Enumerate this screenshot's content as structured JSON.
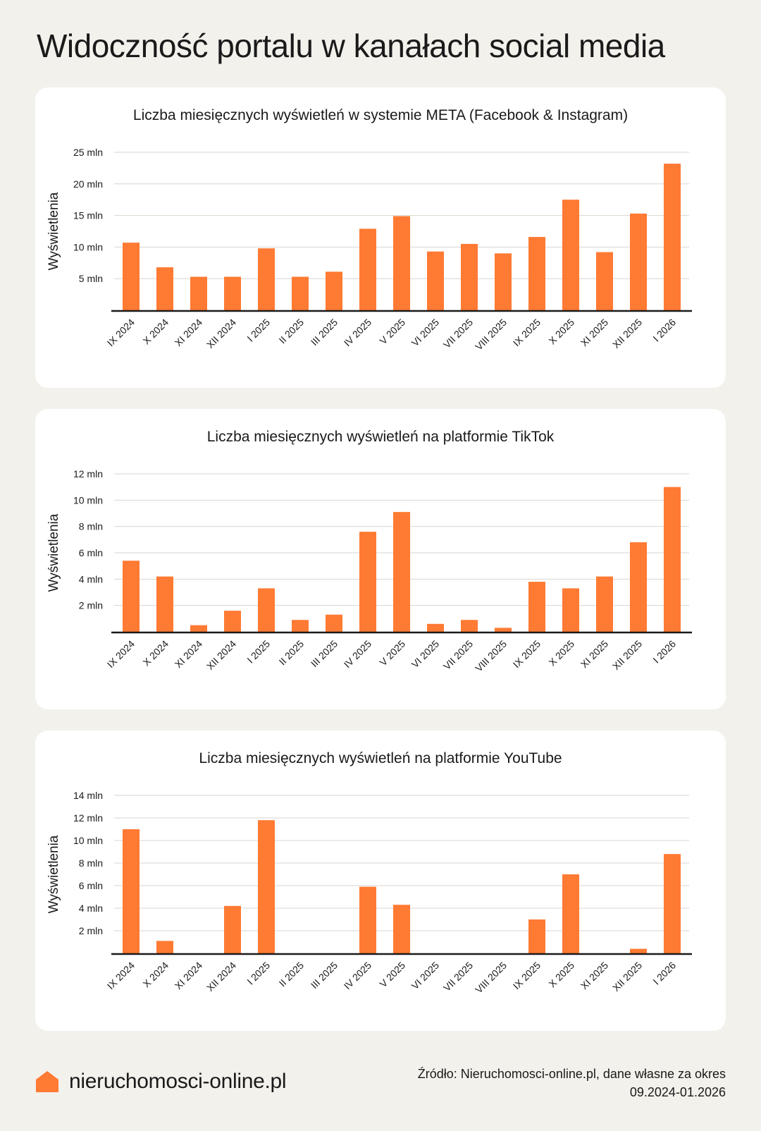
{
  "page": {
    "title": "Widoczność portalu w kanałach social media"
  },
  "colors": {
    "bar": "#ff7a33",
    "grid": "#d9d6cf",
    "axis": "#1a1a1a",
    "card": "#ffffff",
    "background": "#f3f1ec"
  },
  "chart_data": [
    {
      "type": "bar",
      "title": "Liczba miesięcznych wyświetleń w systemie META (Facebook & Instagram)",
      "ylabel": "Wyświetlenia",
      "xlabel": "",
      "ylim": [
        0,
        25
      ],
      "yticks": [
        5,
        10,
        15,
        20,
        25
      ],
      "ytick_labels": [
        "5 mln",
        "10 mln",
        "15 mln",
        "20 mln",
        "25 mln"
      ],
      "categories": [
        "IX 2024",
        "X 2024",
        "XI 2024",
        "XII 2024",
        "I 2025",
        "II 2025",
        "III 2025",
        "IV 2025",
        "V 2025",
        "VI 2025",
        "VII 2025",
        "VIII 2025",
        "IX 2025",
        "X 2025",
        "XI 2025",
        "XII 2025",
        "I 2026"
      ],
      "values": [
        10.7,
        6.8,
        5.3,
        5.3,
        9.8,
        5.3,
        6.1,
        12.9,
        14.9,
        9.3,
        10.5,
        9.0,
        11.6,
        17.5,
        9.2,
        15.3,
        23.2
      ]
    },
    {
      "type": "bar",
      "title": "Liczba miesięcznych wyświetleń na platformie TikTok",
      "ylabel": "Wyświetlenia",
      "xlabel": "",
      "ylim": [
        0,
        12
      ],
      "yticks": [
        2,
        4,
        6,
        8,
        10,
        12
      ],
      "ytick_labels": [
        "2 mln",
        "4 mln",
        "6 mln",
        "8 mln",
        "10 mln",
        "12 mln"
      ],
      "categories": [
        "IX 2024",
        "X 2024",
        "XI 2024",
        "XII 2024",
        "I 2025",
        "II 2025",
        "III 2025",
        "IV 2025",
        "V 2025",
        "VI 2025",
        "VII 2025",
        "VIII 2025",
        "IX 2025",
        "X 2025",
        "XI 2025",
        "XII 2025",
        "I 2026"
      ],
      "values": [
        5.4,
        4.2,
        0.5,
        1.6,
        3.3,
        0.9,
        1.3,
        7.6,
        9.1,
        0.6,
        0.9,
        0.3,
        3.8,
        3.3,
        4.2,
        6.8,
        11.0
      ]
    },
    {
      "type": "bar",
      "title": "Liczba miesięcznych wyświetleń na platformie YouTube",
      "ylabel": "Wyświetlenia",
      "xlabel": "",
      "ylim": [
        0,
        14
      ],
      "yticks": [
        2,
        4,
        6,
        8,
        10,
        12,
        14
      ],
      "ytick_labels": [
        "2 mln",
        "4 mln",
        "6 mln",
        "8 mln",
        "10 mln",
        "12 mln",
        "14 mln"
      ],
      "categories": [
        "IX 2024",
        "X 2024",
        "XI 2024",
        "XII 2024",
        "I 2025",
        "II 2025",
        "III 2025",
        "IV 2025",
        "V 2025",
        "VI 2025",
        "VII 2025",
        "VIII 2025",
        "IX 2025",
        "X 2025",
        "XI 2025",
        "XII 2025",
        "I 2026"
      ],
      "values": [
        11.0,
        1.1,
        0,
        4.2,
        11.8,
        0,
        0,
        5.9,
        4.3,
        0,
        0,
        0,
        3.0,
        7.0,
        0,
        0.4,
        8.8
      ]
    }
  ],
  "footer": {
    "logo_text": "nieruchomosci-online.pl",
    "logo_icon": "house-icon",
    "source_line1": "Źródło: Nieruchomosci-online.pl, dane własne za okres",
    "source_line2": "09.2024-01.2026"
  }
}
